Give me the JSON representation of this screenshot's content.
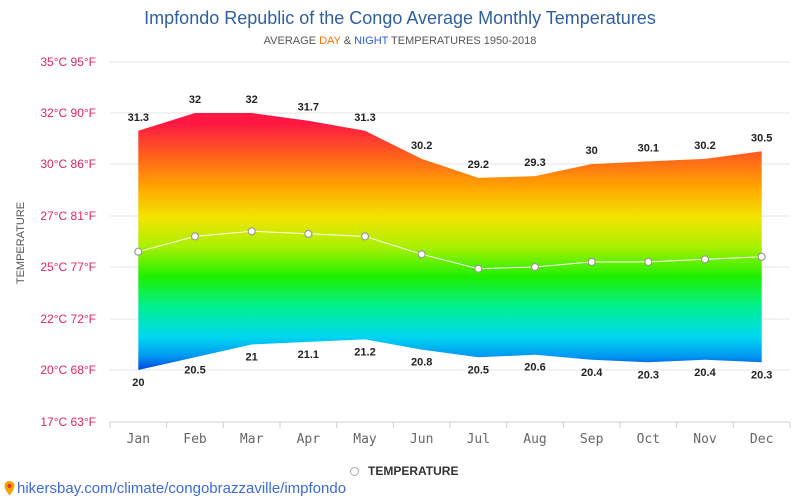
{
  "chart_data": {
    "type": "area",
    "title": "Impfondo Republic of the Congo Average Monthly Temperatures",
    "subtitle": {
      "prefix": "AVERAGE ",
      "day": "DAY",
      "amp": " & ",
      "night": "NIGHT",
      "suffix": " TEMPERATURES 1950-2018"
    },
    "ylabel": "TEMPERATURE",
    "categories": [
      "Jan",
      "Feb",
      "Mar",
      "Apr",
      "May",
      "Jun",
      "Jul",
      "Aug",
      "Sep",
      "Oct",
      "Nov",
      "Dec"
    ],
    "y_ticks": [
      {
        "value": 35,
        "label": "35°C 95°F"
      },
      {
        "value": 32,
        "label": "32°C 90°F"
      },
      {
        "value": 30,
        "label": "30°C 86°F"
      },
      {
        "value": 27,
        "label": "27°C 81°F"
      },
      {
        "value": 25,
        "label": "25°C 77°F"
      },
      {
        "value": 22,
        "label": "22°C 72°F"
      },
      {
        "value": 20,
        "label": "20°C 68°F"
      },
      {
        "value": 17,
        "label": "17°C 63°F"
      }
    ],
    "series": [
      {
        "name": "Day",
        "values": [
          31.3,
          32,
          32,
          31.7,
          31.3,
          30.2,
          29.2,
          29.3,
          30,
          30.1,
          30.2,
          30.5
        ]
      },
      {
        "name": "Night",
        "values": [
          20,
          20.5,
          21,
          21.1,
          21.2,
          20.8,
          20.5,
          20.6,
          20.4,
          20.3,
          20.4,
          20.3
        ]
      },
      {
        "name": "Temperature",
        "values": [
          25.6,
          26.2,
          26.4,
          26.3,
          26.2,
          25.5,
          24.9,
          25.0,
          25.2,
          25.2,
          25.3,
          25.4
        ]
      }
    ],
    "legend": "TEMPERATURE"
  },
  "source": {
    "icon": "map-pin-icon",
    "text": "hikersbay.com/climate/congobrazzaville/impfondo"
  }
}
